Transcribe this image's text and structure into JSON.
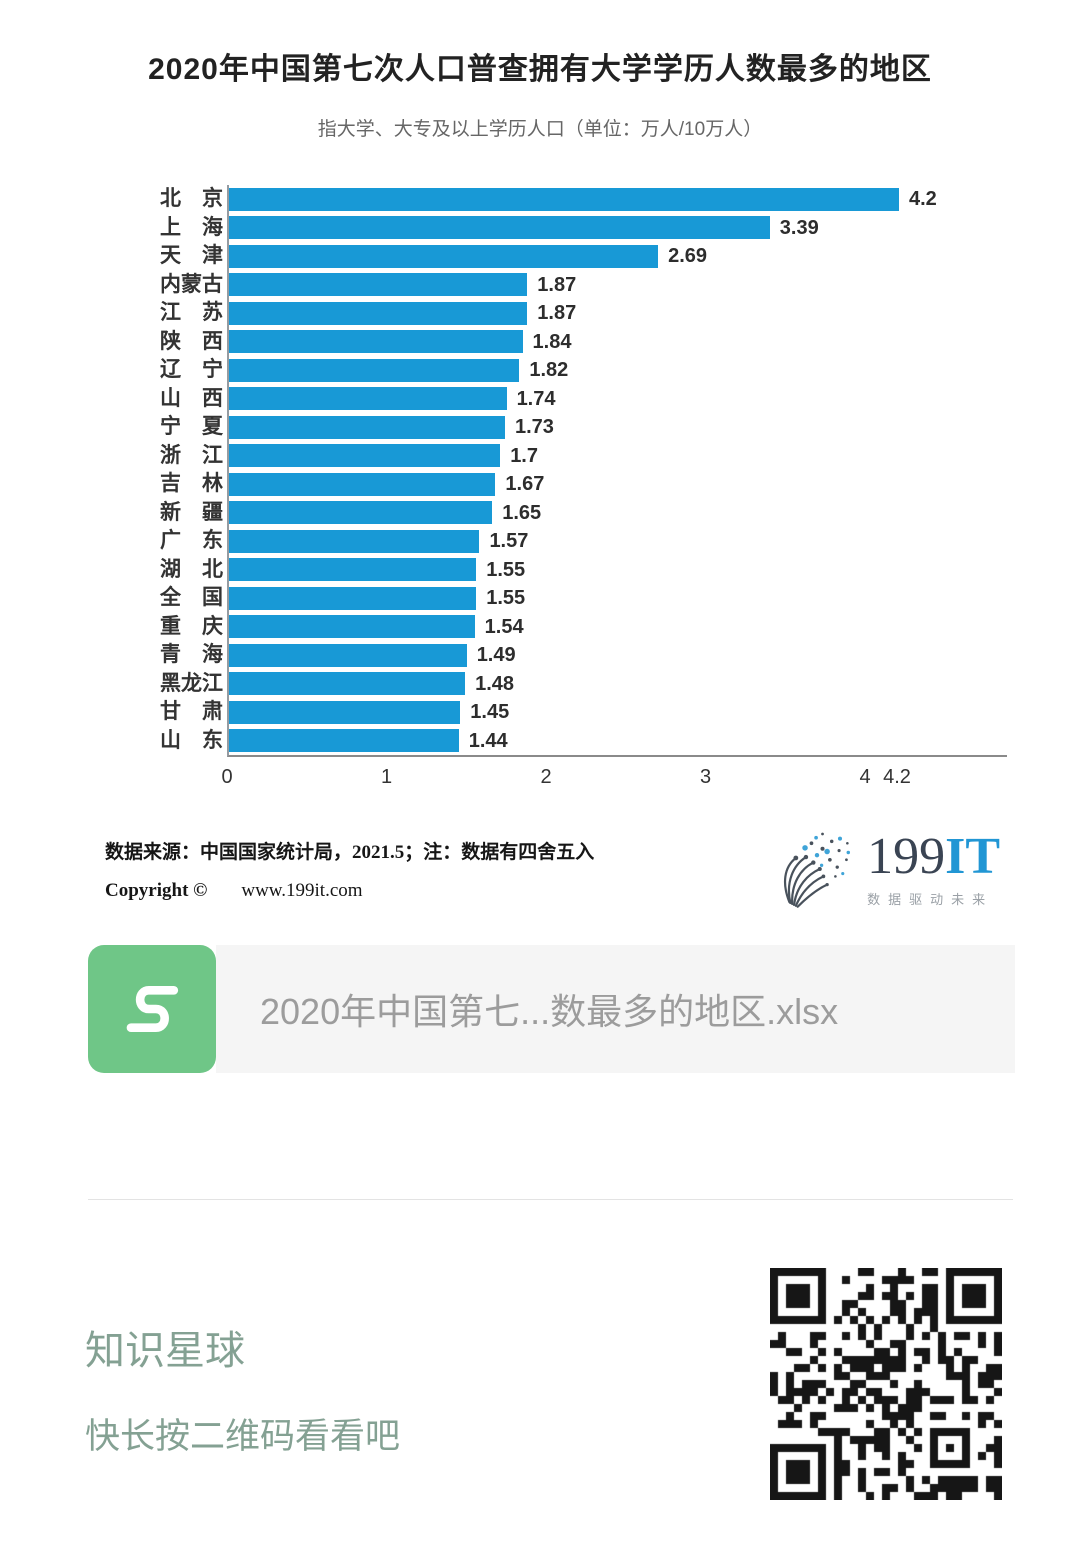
{
  "colors": {
    "bar_blue": "#1899d6",
    "axis_gray": "#8a8a8a",
    "card_bg": "#f5f5f5",
    "icon_green": "#6fc687",
    "filename_gray": "#9c9c9c",
    "divider_gray": "#e3e3e3",
    "sage_green": "#84a193",
    "logo_dark": "#3a4453",
    "logo_blue": "#2196d4"
  },
  "chart_data": {
    "type": "bar",
    "orientation": "horizontal",
    "title": "2020年中国第七次人口普查拥有大学学历人数最多的地区",
    "subtitle": "指大学、大专及以上学历人口（单位：万人/10万人）",
    "categories": [
      "北京",
      "上海",
      "天津",
      "内蒙古",
      "江苏",
      "陕西",
      "辽宁",
      "山西",
      "宁夏",
      "浙江",
      "吉林",
      "新疆",
      "广东",
      "湖北",
      "全国",
      "重庆",
      "青海",
      "黑龙江",
      "甘肃",
      "山东"
    ],
    "values": [
      4.2,
      3.39,
      2.69,
      1.87,
      1.87,
      1.84,
      1.82,
      1.74,
      1.73,
      1.7,
      1.67,
      1.65,
      1.57,
      1.55,
      1.55,
      1.54,
      1.49,
      1.48,
      1.45,
      1.44
    ],
    "value_labels": [
      "4.2",
      "3.39",
      "2.69",
      "1.87",
      "1.87",
      "1.84",
      "1.82",
      "1.74",
      "1.73",
      "1.7",
      "1.67",
      "1.65",
      "1.57",
      "1.55",
      "1.55",
      "1.54",
      "1.49",
      "1.48",
      "1.45",
      "1.44"
    ],
    "xlim": [
      0,
      4.2
    ],
    "x_ticks": [
      0,
      1,
      2,
      3,
      4,
      4.2
    ],
    "x_tick_labels": [
      "0",
      "1",
      "2",
      "3",
      "4",
      "4.2"
    ],
    "grid": false,
    "legend": null,
    "bar_color": "#1899d6"
  },
  "footer": {
    "source_note": "数据来源：中国国家统计局，2021.5；注：数据有四舍五入",
    "copyright_label": "Copyright ©",
    "copyright_site": "www.199it.com",
    "logo": {
      "name_dark": "199",
      "name_accent": "IT",
      "tagline": "数据驱动未来"
    }
  },
  "attachment": {
    "filename": "2020年中国第七...数最多的地区.xlsx",
    "icon": "spreadsheet-s-icon"
  },
  "promo": {
    "title": "知识星球",
    "subtitle": "快长按二维码看看吧"
  }
}
